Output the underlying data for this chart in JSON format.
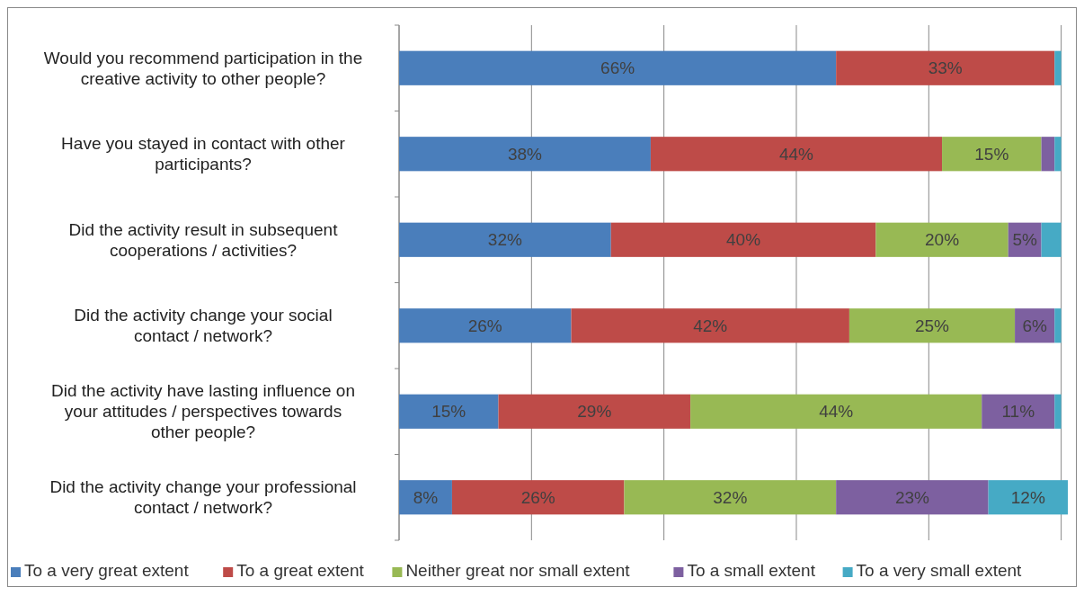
{
  "chart_data": {
    "type": "bar",
    "orientation": "horizontal",
    "stacked": true,
    "categories": [
      "Would you recommend participation in the creative activity to other people?",
      "Have you stayed in contact with other participants?",
      "Did the activity result in subsequent cooperations / activities?",
      "Did the activity change your social contact / network?",
      "Did the activity have lasting influence on your attitudes / perspectives towards other people?",
      "Did the activity change your professional contact / network?"
    ],
    "series": [
      {
        "name": "To a very great extent",
        "color": "#4a7ebb",
        "values": [
          66,
          38,
          32,
          26,
          15,
          8
        ],
        "value_labels": [
          "66%",
          "38%",
          "32%",
          "26%",
          "15%",
          "8%"
        ]
      },
      {
        "name": "To a great extent",
        "color": "#be4b48",
        "values": [
          33,
          44,
          40,
          42,
          29,
          26
        ],
        "value_labels": [
          "33%",
          "44%",
          "40%",
          "42%",
          "29%",
          "26%"
        ]
      },
      {
        "name": "Neither great nor small extent",
        "color": "#98b954",
        "values": [
          0,
          15,
          20,
          25,
          44,
          32
        ],
        "value_labels": [
          null,
          "15%",
          "20%",
          "25%",
          "44%",
          "32%"
        ]
      },
      {
        "name": "To a small extent",
        "color": "#7d60a0",
        "values": [
          0,
          2,
          5,
          6,
          11,
          23
        ],
        "value_labels": [
          null,
          null,
          "5%",
          "6%",
          "11%",
          "23%"
        ]
      },
      {
        "name": "To a very small extent",
        "color": "#46aac5",
        "values": [
          1,
          1,
          3,
          1,
          1,
          12
        ],
        "value_labels": [
          null,
          null,
          null,
          null,
          null,
          "12%"
        ]
      }
    ],
    "xlim": [
      0,
      101
    ],
    "xticks": [
      {
        "value": 0,
        "label": null
      },
      {
        "value": 20,
        "label": null
      },
      {
        "value": 40,
        "label": null
      },
      {
        "value": 60,
        "label": null
      },
      {
        "value": 80,
        "label": null
      },
      {
        "value": 100,
        "label": null
      }
    ],
    "grid": "x",
    "legend": "bottom"
  }
}
